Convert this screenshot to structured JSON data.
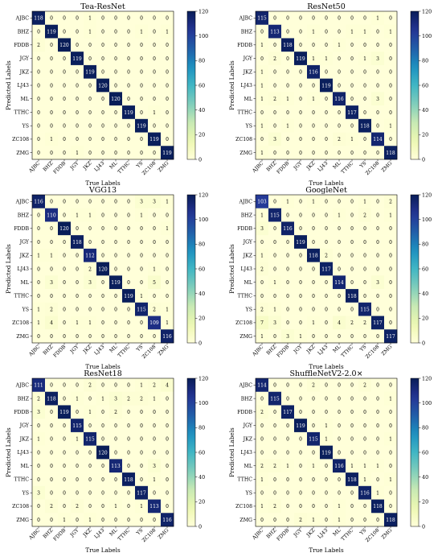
{
  "chart_data": [
    {
      "type": "heatmap",
      "title": "Tea-ResNet",
      "xlabel": "True Labels",
      "ylabel": "Predicted Labels",
      "labels": [
        "AJBC",
        "BHZ",
        "FDDB",
        "JGY",
        "JKZ",
        "LJ43",
        "ML",
        "TTHC",
        "YS",
        "ZC108",
        "ZMG"
      ],
      "matrix": [
        [
          118,
          0,
          0,
          0,
          1,
          0,
          0,
          0,
          0,
          0,
          0
        ],
        [
          0,
          119,
          0,
          0,
          1,
          0,
          0,
          0,
          1,
          0,
          1
        ],
        [
          2,
          0,
          120,
          0,
          0,
          0,
          0,
          0,
          0,
          0,
          0
        ],
        [
          0,
          0,
          0,
          119,
          0,
          0,
          0,
          0,
          0,
          0,
          0
        ],
        [
          0,
          0,
          0,
          0,
          119,
          0,
          0,
          0,
          0,
          0,
          0
        ],
        [
          0,
          0,
          0,
          0,
          0,
          120,
          0,
          0,
          0,
          0,
          0
        ],
        [
          0,
          0,
          0,
          0,
          0,
          0,
          120,
          0,
          0,
          0,
          0
        ],
        [
          0,
          0,
          0,
          0,
          0,
          0,
          0,
          119,
          0,
          1,
          0
        ],
        [
          0,
          0,
          0,
          0,
          0,
          0,
          0,
          0,
          119,
          0,
          0
        ],
        [
          0,
          1,
          0,
          0,
          0,
          0,
          0,
          0,
          0,
          119,
          0
        ],
        [
          0,
          0,
          0,
          1,
          0,
          0,
          0,
          0,
          0,
          0,
          119
        ]
      ],
      "colorbar": {
        "min": 0,
        "max": 120,
        "ticks": [
          0,
          20,
          40,
          60,
          80,
          100,
          120
        ]
      }
    },
    {
      "type": "heatmap",
      "title": "ResNet50",
      "xlabel": "True Labels",
      "ylabel": "Predicted Labels",
      "labels": [
        "AJBC",
        "BHZ",
        "FDDB",
        "JGY",
        "JKZ",
        "LJ43",
        "ML",
        "TTHC",
        "YS",
        "ZC108",
        "ZMG"
      ],
      "matrix": [
        [
          115,
          0,
          0,
          0,
          0,
          0,
          0,
          0,
          0,
          1,
          0
        ],
        [
          0,
          113,
          0,
          0,
          1,
          0,
          0,
          1,
          1,
          0,
          1
        ],
        [
          1,
          0,
          118,
          0,
          0,
          0,
          1,
          0,
          0,
          0,
          0
        ],
        [
          0,
          2,
          0,
          119,
          1,
          1,
          0,
          0,
          1,
          3,
          0
        ],
        [
          1,
          0,
          0,
          0,
          116,
          0,
          0,
          0,
          0,
          0,
          0
        ],
        [
          1,
          0,
          0,
          0,
          0,
          119,
          0,
          0,
          0,
          0,
          0
        ],
        [
          1,
          2,
          1,
          0,
          1,
          0,
          116,
          0,
          0,
          3,
          0
        ],
        [
          0,
          0,
          0,
          0,
          0,
          0,
          0,
          117,
          0,
          0,
          0
        ],
        [
          1,
          0,
          1,
          0,
          0,
          0,
          0,
          0,
          118,
          0,
          1
        ],
        [
          0,
          3,
          0,
          0,
          0,
          0,
          2,
          1,
          0,
          114,
          0
        ],
        [
          1,
          0,
          0,
          0,
          0,
          0,
          0,
          0,
          0,
          0,
          118
        ]
      ],
      "colorbar": {
        "min": 0,
        "max": 120,
        "ticks": [
          0,
          20,
          40,
          60,
          80,
          100,
          120
        ]
      }
    },
    {
      "type": "heatmap",
      "title": "VGG13",
      "xlabel": "True Labels",
      "ylabel": "Predicted Labels",
      "labels": [
        "AJBC",
        "BHZ",
        "FDDB",
        "JGY",
        "JKZ",
        "LJ43",
        "ML",
        "TTHC",
        "YS",
        "ZC108",
        "ZMG"
      ],
      "matrix": [
        [
          116,
          0,
          0,
          0,
          0,
          0,
          0,
          0,
          3,
          3,
          1
        ],
        [
          0,
          110,
          0,
          1,
          1,
          0,
          0,
          0,
          1,
          0,
          0
        ],
        [
          0,
          0,
          120,
          0,
          0,
          0,
          0,
          0,
          0,
          0,
          1
        ],
        [
          0,
          0,
          0,
          118,
          0,
          0,
          0,
          0,
          0,
          0,
          0
        ],
        [
          1,
          1,
          0,
          0,
          112,
          0,
          0,
          0,
          0,
          0,
          0
        ],
        [
          0,
          0,
          0,
          0,
          2,
          120,
          0,
          0,
          0,
          1,
          0
        ],
        [
          0,
          3,
          0,
          0,
          3,
          0,
          119,
          0,
          0,
          5,
          0
        ],
        [
          0,
          0,
          0,
          0,
          0,
          0,
          0,
          119,
          1,
          0,
          0
        ],
        [
          1,
          2,
          0,
          0,
          0,
          0,
          0,
          0,
          115,
          2,
          1
        ],
        [
          1,
          4,
          0,
          1,
          1,
          0,
          0,
          0,
          0,
          109,
          1
        ],
        [
          0,
          0,
          0,
          0,
          0,
          0,
          0,
          0,
          0,
          0,
          116
        ]
      ],
      "colorbar": {
        "min": 0,
        "max": 120,
        "ticks": [
          0,
          20,
          40,
          60,
          80,
          100,
          120
        ]
      }
    },
    {
      "type": "heatmap",
      "title": "GoogleNet",
      "xlabel": "True Labels",
      "ylabel": "Predicted Labels",
      "labels": [
        "AJBC",
        "BHZ",
        "FDDB",
        "JGY",
        "JKZ",
        "LJ43",
        "ML",
        "TTHC",
        "YS",
        "ZC108",
        "ZMG"
      ],
      "matrix": [
        [
          103,
          0,
          1,
          0,
          1,
          0,
          0,
          0,
          1,
          0,
          2
        ],
        [
          1,
          115,
          0,
          0,
          0,
          0,
          1,
          0,
          2,
          0,
          1
        ],
        [
          3,
          0,
          116,
          0,
          0,
          0,
          0,
          0,
          0,
          0,
          0
        ],
        [
          0,
          0,
          0,
          119,
          0,
          0,
          0,
          0,
          0,
          0,
          0
        ],
        [
          1,
          0,
          0,
          0,
          118,
          2,
          0,
          0,
          0,
          0,
          0
        ],
        [
          2,
          0,
          0,
          0,
          0,
          117,
          0,
          0,
          0,
          0,
          0
        ],
        [
          0,
          1,
          0,
          0,
          0,
          0,
          114,
          0,
          0,
          3,
          0
        ],
        [
          0,
          0,
          0,
          0,
          0,
          0,
          0,
          118,
          0,
          0,
          0
        ],
        [
          2,
          1,
          0,
          0,
          0,
          0,
          0,
          0,
          115,
          0,
          0
        ],
        [
          7,
          3,
          0,
          0,
          1,
          0,
          4,
          2,
          2,
          117,
          0
        ],
        [
          1,
          0,
          3,
          1,
          0,
          0,
          0,
          0,
          0,
          0,
          117
        ]
      ],
      "colorbar": {
        "min": 0,
        "max": 120,
        "ticks": [
          0,
          20,
          40,
          60,
          80,
          100,
          120
        ]
      }
    },
    {
      "type": "heatmap",
      "title": "ResNet18",
      "xlabel": "True Labels",
      "ylabel": "Predicted Labels",
      "labels": [
        "AJBC",
        "BHZ",
        "FDDB",
        "JGY",
        "JKZ",
        "LJ43",
        "ML",
        "TTHC",
        "YS",
        "ZC108",
        "ZMG"
      ],
      "matrix": [
        [
          111,
          0,
          0,
          0,
          2,
          0,
          0,
          0,
          1,
          2,
          4
        ],
        [
          2,
          118,
          0,
          1,
          0,
          1,
          3,
          2,
          2,
          1,
          0
        ],
        [
          3,
          0,
          119,
          0,
          1,
          0,
          2,
          0,
          0,
          0,
          0
        ],
        [
          0,
          0,
          0,
          115,
          0,
          0,
          0,
          0,
          0,
          0,
          0
        ],
        [
          1,
          0,
          0,
          1,
          115,
          0,
          0,
          0,
          0,
          0,
          0
        ],
        [
          0,
          0,
          0,
          0,
          0,
          120,
          0,
          0,
          0,
          0,
          0
        ],
        [
          0,
          0,
          0,
          0,
          0,
          0,
          113,
          0,
          0,
          3,
          0
        ],
        [
          0,
          0,
          0,
          0,
          0,
          0,
          0,
          118,
          0,
          1,
          0
        ],
        [
          3,
          0,
          0,
          0,
          0,
          0,
          0,
          0,
          117,
          0,
          0
        ],
        [
          0,
          2,
          0,
          2,
          0,
          0,
          1,
          0,
          1,
          113,
          0
        ],
        [
          0,
          0,
          1,
          0,
          1,
          0,
          0,
          0,
          0,
          0,
          116
        ]
      ],
      "colorbar": {
        "min": 0,
        "max": 120,
        "ticks": [
          0,
          20,
          40,
          60,
          80,
          100,
          120
        ]
      }
    },
    {
      "type": "heatmap",
      "title": "ShuffleNetV2-2.0×",
      "xlabel": "True Labels",
      "ylabel": "Predicted Labels",
      "labels": [
        "AJBC",
        "BHZ",
        "FDDB",
        "JGY",
        "JKZ",
        "LJ43",
        "ML",
        "TTHC",
        "YS",
        "ZC108",
        "ZMG"
      ],
      "matrix": [
        [
          114,
          0,
          0,
          0,
          2,
          0,
          0,
          0,
          2,
          0,
          0
        ],
        [
          0,
          115,
          0,
          0,
          0,
          0,
          0,
          0,
          0,
          0,
          1
        ],
        [
          2,
          0,
          117,
          0,
          0,
          0,
          0,
          0,
          0,
          0,
          0
        ],
        [
          0,
          0,
          0,
          119,
          0,
          1,
          0,
          0,
          0,
          0,
          0
        ],
        [
          0,
          0,
          0,
          0,
          115,
          1,
          0,
          0,
          0,
          0,
          1
        ],
        [
          0,
          0,
          0,
          0,
          0,
          119,
          0,
          0,
          0,
          0,
          0
        ],
        [
          2,
          2,
          1,
          0,
          1,
          0,
          116,
          1,
          1,
          1,
          0
        ],
        [
          1,
          0,
          0,
          0,
          0,
          0,
          0,
          118,
          1,
          0,
          1
        ],
        [
          0,
          0,
          0,
          0,
          0,
          0,
          0,
          0,
          116,
          1,
          0
        ],
        [
          1,
          2,
          0,
          0,
          0,
          0,
          1,
          0,
          0,
          118,
          0
        ],
        [
          0,
          0,
          0,
          2,
          1,
          0,
          1,
          0,
          0,
          0,
          118
        ]
      ],
      "colorbar": {
        "min": 0,
        "max": 120,
        "ticks": [
          0,
          20,
          40,
          60,
          80,
          100,
          120
        ]
      }
    }
  ]
}
